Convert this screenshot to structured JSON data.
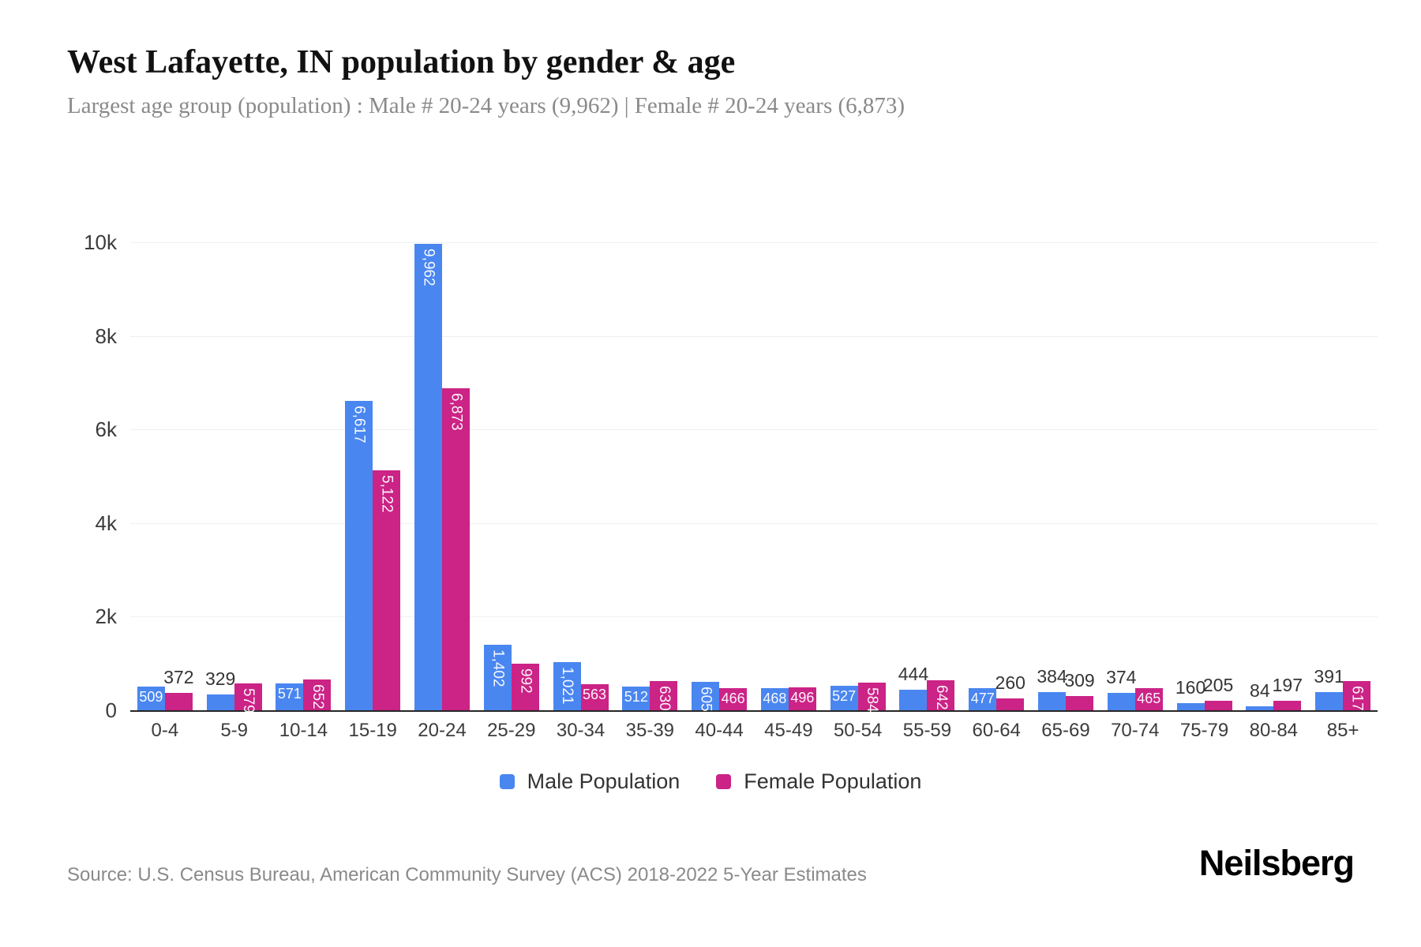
{
  "page": {
    "title": "West Lafayette, IN population by gender & age",
    "subtitle": "Largest age group (population) : Male # 20-24 years (9,962) | Female # 20-24 years (6,873)"
  },
  "chart_data": {
    "type": "bar",
    "title": "West Lafayette, IN population by gender & age",
    "categories": [
      "0-4",
      "5-9",
      "10-14",
      "15-19",
      "20-24",
      "25-29",
      "30-34",
      "35-39",
      "40-44",
      "45-49",
      "50-54",
      "55-59",
      "60-64",
      "65-69",
      "70-74",
      "75-79",
      "80-84",
      "85+"
    ],
    "series": [
      {
        "name": "Male Population",
        "color": "#4a86f0",
        "values": [
          509,
          329,
          571,
          6617,
          9962,
          1402,
          1021,
          512,
          605,
          468,
          527,
          444,
          477,
          384,
          374,
          160,
          84,
          391
        ],
        "label_placement": [
          "in",
          "above",
          "in",
          "rot",
          "rot",
          "rot",
          "rot",
          "in",
          "rot",
          "in",
          "in",
          "above",
          "in",
          "above",
          "above",
          "above",
          "above",
          "above"
        ]
      },
      {
        "name": "Female Population",
        "color": "#cb2386",
        "values": [
          372,
          579,
          652,
          5122,
          6873,
          992,
          563,
          630,
          466,
          496,
          584,
          642,
          260,
          309,
          465,
          205,
          197,
          617
        ],
        "label_placement": [
          "above",
          "rot",
          "rot",
          "rot",
          "rot",
          "rot",
          "in",
          "rot",
          "in",
          "in",
          "rot",
          "rot",
          "above",
          "above",
          "in",
          "above",
          "above",
          "rot"
        ]
      }
    ],
    "xlabel": "",
    "ylabel": "",
    "ylim": [
      0,
      10000
    ],
    "y_ticks": [
      {
        "label": "0",
        "value": 0
      },
      {
        "label": "2k",
        "value": 2000
      },
      {
        "label": "4k",
        "value": 4000
      },
      {
        "label": "6k",
        "value": 6000
      },
      {
        "label": "8k",
        "value": 8000
      },
      {
        "label": "10k",
        "value": 10000
      }
    ],
    "grid": "horizontal",
    "legend_position": "bottom"
  },
  "footer": {
    "source": "Source: U.S. Census Bureau, American Community Survey (ACS) 2018-2022 5-Year Estimates",
    "brand": "Neilsberg"
  }
}
